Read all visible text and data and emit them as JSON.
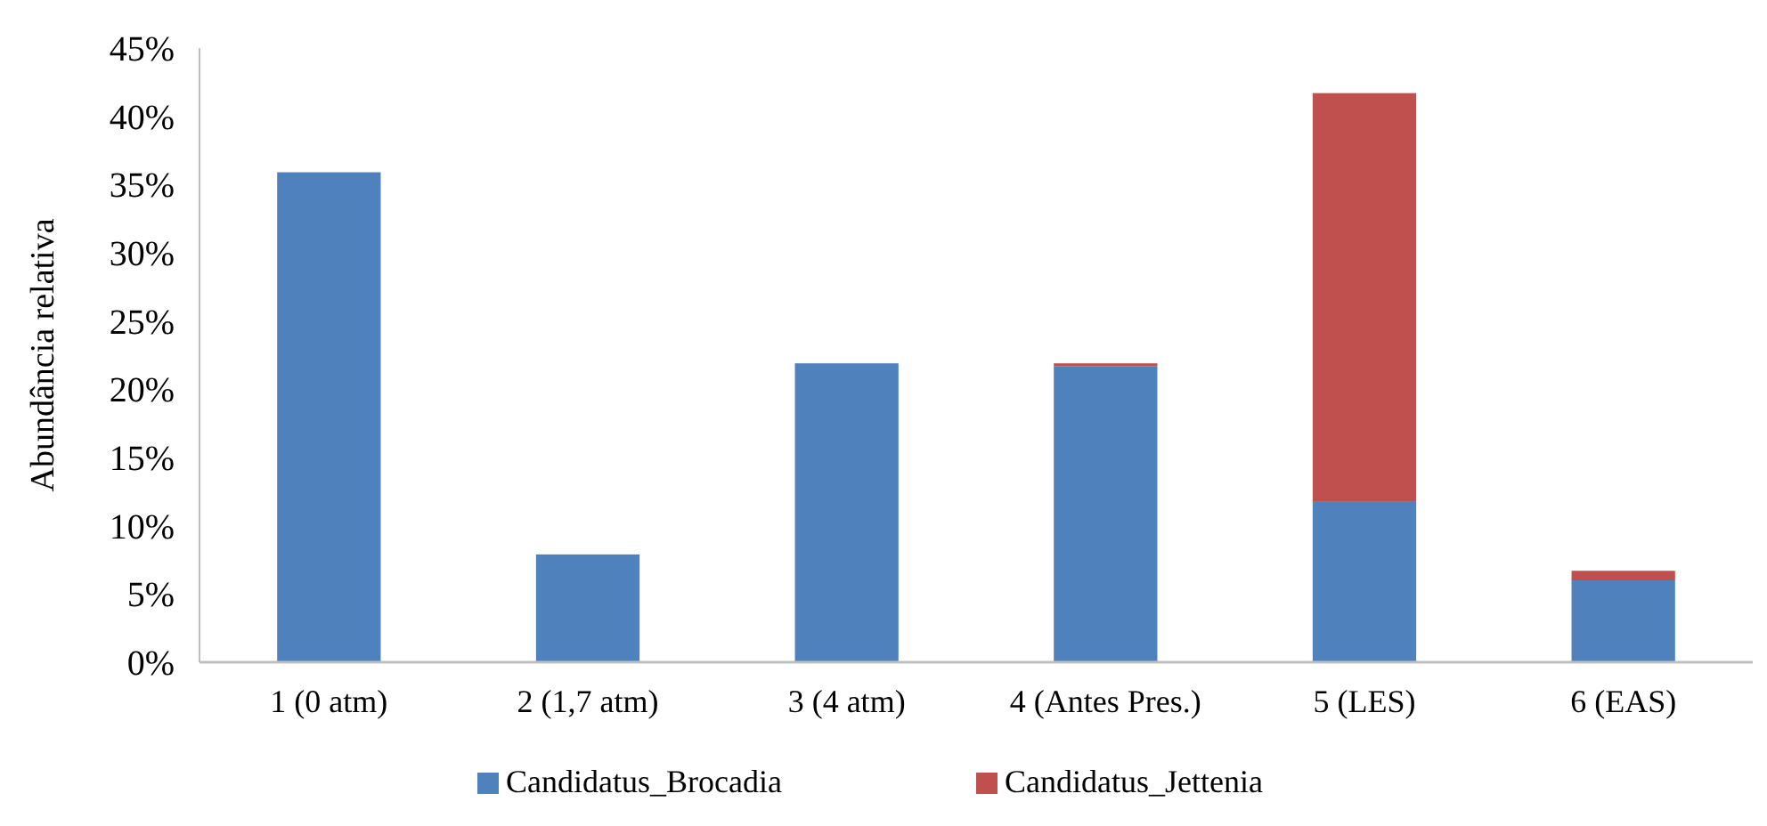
{
  "chart_data": {
    "type": "bar",
    "stacked": true,
    "ylabel": "Abundância relativa",
    "categories": [
      "1 (0 atm)",
      "2 (1,7 atm)",
      "3 (4 atm)",
      "4 (Antes Pres.)",
      "5 (LES)",
      "6 (EAS)"
    ],
    "series": [
      {
        "name": "Candidatus_Brocadia",
        "color": "#4f81bd",
        "values": [
          35.9,
          7.9,
          21.9,
          21.7,
          11.8,
          6.0
        ]
      },
      {
        "name": "Candidatus_Jettenia",
        "color": "#c0504d",
        "values": [
          0,
          0,
          0,
          0.2,
          29.9,
          0.7
        ]
      }
    ],
    "ylim": [
      0,
      45
    ],
    "yticks": [
      {
        "value": 0,
        "label": "0%"
      },
      {
        "value": 5,
        "label": "5%"
      },
      {
        "value": 10,
        "label": "10%"
      },
      {
        "value": 15,
        "label": "15%"
      },
      {
        "value": 20,
        "label": "20%"
      },
      {
        "value": 25,
        "label": "25%"
      },
      {
        "value": 30,
        "label": "30%"
      },
      {
        "value": 35,
        "label": "35%"
      },
      {
        "value": 40,
        "label": "40%"
      },
      {
        "value": 45,
        "label": "45%"
      }
    ],
    "grid": false,
    "legend": "bottom"
  }
}
